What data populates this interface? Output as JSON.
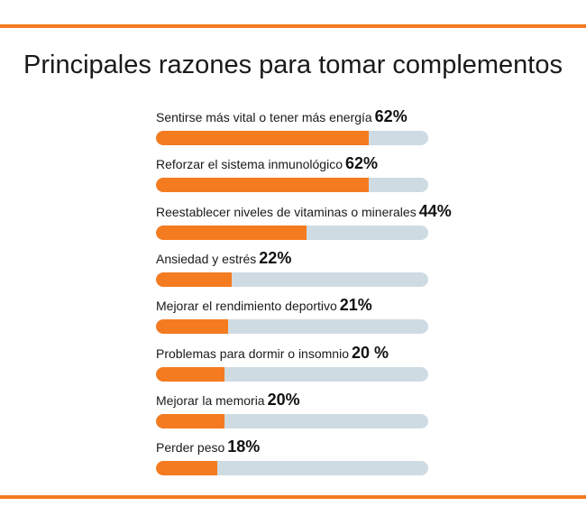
{
  "chart_data": {
    "type": "bar",
    "title": "Principales razones para tomar complementos",
    "categories": [
      "Sentirse más vital o tener más energía",
      "Reforzar el sistema inmunológico",
      "Reestablecer niveles de vitaminas o minerales",
      "Ansiedad y estrés",
      "Mejorar el rendimiento deportivo",
      "Problemas para dormir o insomnio",
      "Mejorar la memoria",
      "Perder peso"
    ],
    "values": [
      62,
      62,
      44,
      22,
      21,
      20,
      20,
      18
    ],
    "labels": [
      "62%",
      "62%",
      "44%",
      "22%",
      "21%",
      "20 %",
      "20%",
      "18%"
    ],
    "colors": {
      "fill": "#f47b20",
      "track": "#cfdbe3"
    }
  }
}
